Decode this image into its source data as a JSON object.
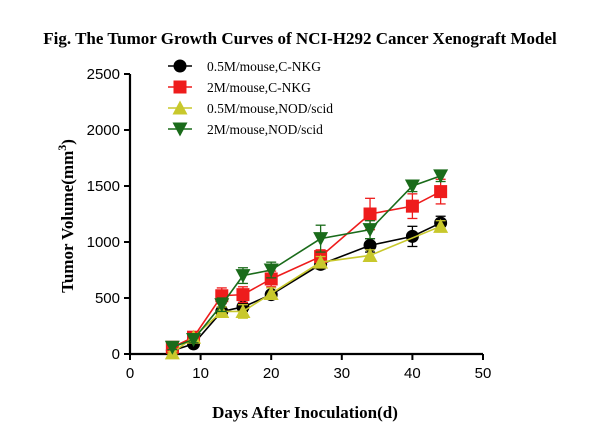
{
  "chart_data": {
    "type": "line",
    "title": "Fig. The Tumor Growth Curves of NCI-H292 Cancer Xenograft Model",
    "xlabel": "Days After Inoculation(d)",
    "ylabel_main": "Tumor Volume(mm",
    "ylabel_sup": "3",
    "ylabel_close": ")",
    "xlim": [
      0,
      50
    ],
    "ylim": [
      0,
      2500
    ],
    "xticks": [
      0,
      10,
      20,
      30,
      40,
      50
    ],
    "yticks": [
      0,
      500,
      1000,
      1500,
      2000,
      2500
    ],
    "xtick_labels": [
      "0",
      "10",
      "20",
      "30",
      "40",
      "50"
    ],
    "ytick_labels": [
      "0",
      "500",
      "1000",
      "1500",
      "2000",
      "2500"
    ],
    "grid": false,
    "legend_position": "top-center",
    "series": [
      {
        "name": "0.5M/mouse,C-NKG",
        "color": "#000000",
        "marker": "circle",
        "x": [
          6,
          9,
          13,
          16,
          20,
          27,
          34,
          40,
          44
        ],
        "y": [
          30,
          90,
          380,
          420,
          530,
          800,
          970,
          1050,
          1170
        ],
        "err": [
          20,
          20,
          40,
          40,
          30,
          40,
          60,
          90,
          60
        ]
      },
      {
        "name": "2M/mouse,C-NKG",
        "color": "#ee1c1c",
        "marker": "square",
        "x": [
          6,
          9,
          13,
          16,
          20,
          27,
          34,
          40,
          44
        ],
        "y": [
          60,
          150,
          520,
          530,
          670,
          870,
          1250,
          1320,
          1450
        ],
        "err": [
          20,
          30,
          70,
          70,
          70,
          60,
          140,
          110,
          110
        ]
      },
      {
        "name": "0.5M/mouse,NOD/scid",
        "color": "#c8c82c",
        "marker": "triangle-up",
        "x": [
          6,
          9,
          13,
          16,
          20,
          27,
          34,
          44
        ],
        "y": [
          10,
          150,
          380,
          380,
          540,
          820,
          880,
          1140
        ],
        "err": [
          10,
          30,
          40,
          60,
          50,
          50,
          50,
          50
        ]
      },
      {
        "name": "2M/mouse,NOD/scid",
        "color": "#1a6b1a",
        "marker": "triangle-down",
        "x": [
          6,
          9,
          13,
          16,
          20,
          27,
          34,
          40,
          44
        ],
        "y": [
          60,
          130,
          440,
          700,
          750,
          1030,
          1110,
          1500,
          1590
        ],
        "err": [
          20,
          30,
          60,
          70,
          70,
          120,
          80,
          50,
          50
        ]
      }
    ]
  }
}
